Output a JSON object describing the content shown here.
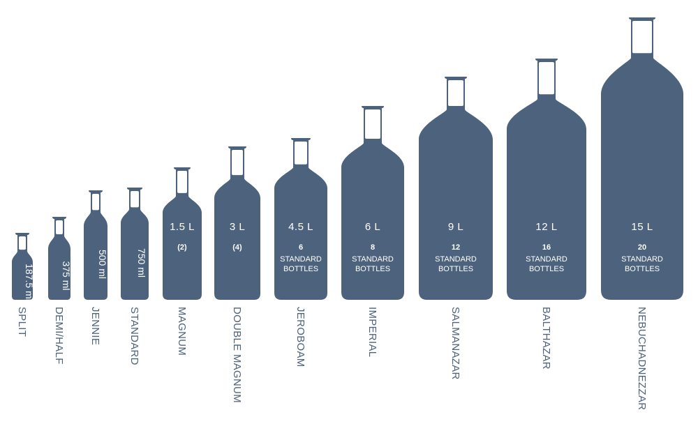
{
  "colors": {
    "bottle": "#4d627c",
    "label_text": "#ffffff",
    "name_text": "#4d627c",
    "background": "#ffffff"
  },
  "bottles": [
    {
      "name": "SPLIT",
      "volume": "187.5 ml",
      "volume_display": "187.5 ml",
      "rotated_volume": true
    },
    {
      "name": "DEMI/HALF",
      "volume": "375 ml",
      "volume_display": "375 ml",
      "rotated_volume": true
    },
    {
      "name": "JENNIE",
      "volume": "500 ml",
      "volume_display": "500 ml",
      "rotated_volume": true
    },
    {
      "name": "STANDARD",
      "volume": "750 ml",
      "volume_display": "750 ml",
      "rotated_volume": true
    },
    {
      "name": "MAGNUM",
      "volume": "1.5 L",
      "volume_display": "1.5 L",
      "count": "(2)",
      "rotated_volume": false
    },
    {
      "name": "DOUBLE MAGNUM",
      "volume": "3 L",
      "volume_display": "3 L",
      "count": "(4)",
      "rotated_volume": false
    },
    {
      "name": "JEROBOAM",
      "volume": "4.5 L",
      "volume_display": "4.5 L",
      "count": "6",
      "std_line1": "STANDARD",
      "std_line2": "BOTTLES",
      "rotated_volume": false
    },
    {
      "name": "IMPERIAL",
      "volume": "6 L",
      "volume_display": "6 L",
      "count": "8",
      "std_line1": "STANDARD",
      "std_line2": "BOTTLES",
      "rotated_volume": false
    },
    {
      "name": "SALMANAZAR",
      "volume": "9 L",
      "volume_display": "9 L",
      "count": "12",
      "std_line1": "STANDARD",
      "std_line2": "BOTTLES",
      "rotated_volume": false
    },
    {
      "name": "BALTHAZAR",
      "volume": "12 L",
      "volume_display": "12 L",
      "count": "16",
      "std_line1": "STANDARD",
      "std_line2": "BOTTLES",
      "rotated_volume": false
    },
    {
      "name": "NEBUCHADNEZZAR",
      "volume": "15 L",
      "volume_display": "15 L",
      "count": "20",
      "std_line1": "STANDARD",
      "std_line2": "BOTTLES",
      "rotated_volume": false
    }
  ]
}
